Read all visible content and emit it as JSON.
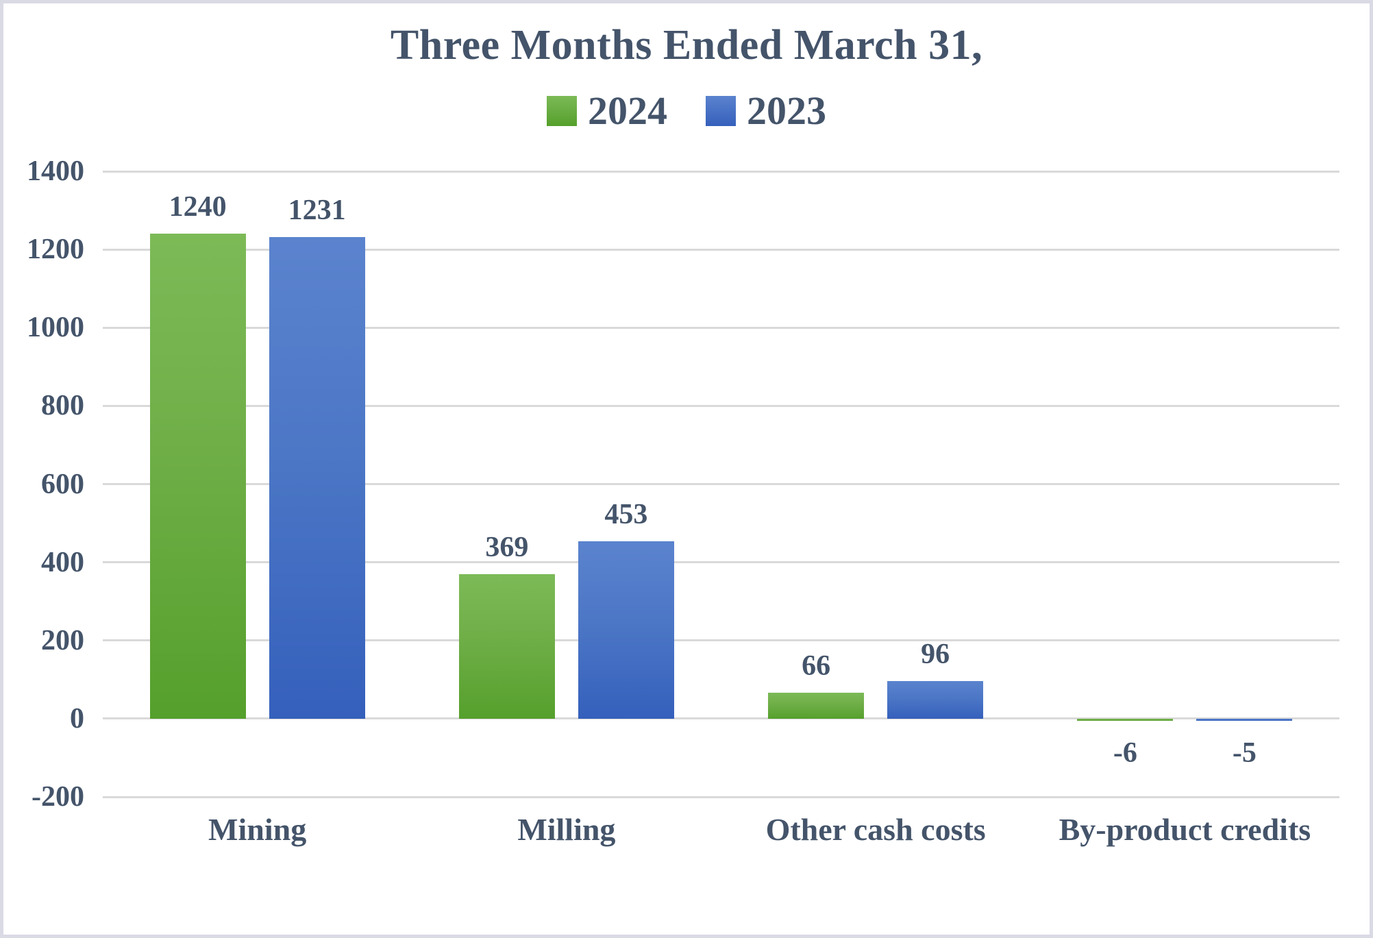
{
  "frame": {
    "background_color": "#FFFFFF",
    "border_color": "#D9DAE4"
  },
  "chart_data": {
    "type": "bar",
    "title": "Three Months Ended March 31,",
    "categories": [
      "Mining",
      "Milling",
      "Other cash costs",
      "By-product credits"
    ],
    "series": [
      {
        "name": "2024",
        "values": [
          1240,
          369,
          66,
          -6
        ],
        "swatch_color": "#6FAE47",
        "gradient_top": "#7CBA57",
        "gradient_bottom": "#55A02C"
      },
      {
        "name": "2023",
        "values": [
          1231,
          453,
          96,
          -5
        ],
        "swatch_color": "#4472C4",
        "gradient_top": "#5B83CE",
        "gradient_bottom": "#3560BC"
      }
    ],
    "ylim": [
      -200,
      1400
    ],
    "yticks": [
      1400,
      1200,
      1000,
      800,
      600,
      400,
      200,
      0,
      -200
    ],
    "grid": true,
    "gridline_color": "#D9D9D9",
    "legend_position": "top-center",
    "data_labels": true,
    "xlabel": "",
    "ylabel": "",
    "text_color": "#44546A"
  }
}
